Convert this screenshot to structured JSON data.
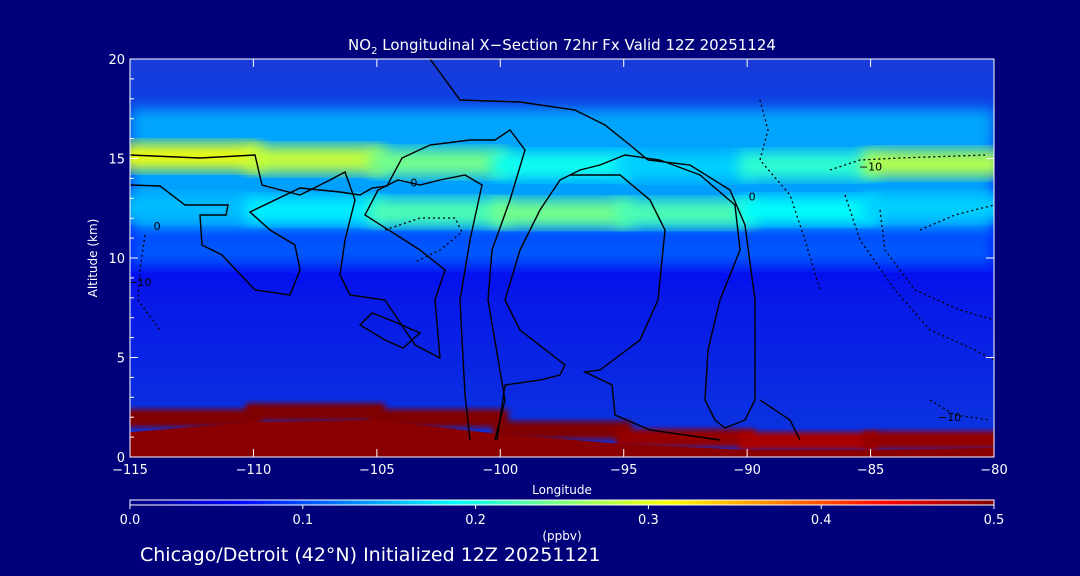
{
  "chart_data": {
    "type": "heatmap",
    "title_prefix": "NO",
    "title_sub": "2",
    "title_rest": " Longitudinal X−Section 72hr  Fx Valid 12Z 20251124",
    "xlabel": "Longitude",
    "ylabel": "Altitude (km)",
    "xlim": [
      -115,
      -80
    ],
    "ylim": [
      0,
      20
    ],
    "x_ticks": [
      -115,
      -110,
      -105,
      -100,
      -95,
      -90,
      -85,
      -80
    ],
    "x_tick_labels": [
      "−115",
      "−110",
      "−105",
      "−100",
      "−95",
      "−90",
      "−85",
      "−80"
    ],
    "y_ticks": [
      0,
      5,
      10,
      15,
      20
    ],
    "y_tick_labels": [
      "0",
      "5",
      "10",
      "15",
      "20"
    ],
    "colorbar": {
      "label": "(ppbv)",
      "range": [
        0.0,
        0.5
      ],
      "ticks": [
        0.0,
        0.1,
        0.2,
        0.3,
        0.4,
        0.5
      ],
      "tick_labels": [
        "0.0",
        "0.1",
        "0.2",
        "0.3",
        "0.4",
        "0.5"
      ],
      "colors": [
        "#000080",
        "#0000ff",
        "#0080ff",
        "#00ffff",
        "#80ff80",
        "#ffff00",
        "#ff8000",
        "#ff0000",
        "#800000"
      ]
    },
    "layers": [
      {
        "name": "upper band",
        "altitude_km": [
          15.2,
          15.0,
          14.9,
          14.7,
          14.6,
          14.6,
          14.7,
          14.8
        ],
        "value_ppbv": [
          0.31,
          0.3,
          0.27,
          0.22,
          0.17,
          0.16,
          0.26,
          0.29
        ]
      },
      {
        "name": "lower band",
        "altitude_km": [
          12.6,
          12.5,
          12.3,
          12.3,
          12.2,
          12.3,
          12.5,
          12.6
        ],
        "value_ppbv": [
          0.15,
          0.16,
          0.2,
          0.25,
          0.24,
          0.21,
          0.17,
          0.16
        ]
      },
      {
        "name": "surface layer",
        "altitude_km": [
          1.7,
          2.2,
          2.3,
          1.6,
          1.1,
          0.8,
          0.8,
          0.9
        ],
        "value_ppbv": [
          0.5,
          0.5,
          0.5,
          0.5,
          0.5,
          0.48,
          0.48,
          0.5
        ]
      }
    ],
    "contour_labels": [
      {
        "text": "0",
        "lon": -113.9,
        "alt": 11.4
      },
      {
        "text": "0",
        "lon": -103.5,
        "alt": 13.6
      },
      {
        "text": "0",
        "lon": -89.8,
        "alt": 12.9
      },
      {
        "text": "−10",
        "lon": -85.0,
        "alt": 14.4
      },
      {
        "text": "−10",
        "lon": -114.6,
        "alt": 8.6
      },
      {
        "text": "−10",
        "lon": -81.8,
        "alt": 1.8
      }
    ],
    "subtitle": "Chicago/Detroit (42°N) Initialized 12Z 20251121"
  }
}
